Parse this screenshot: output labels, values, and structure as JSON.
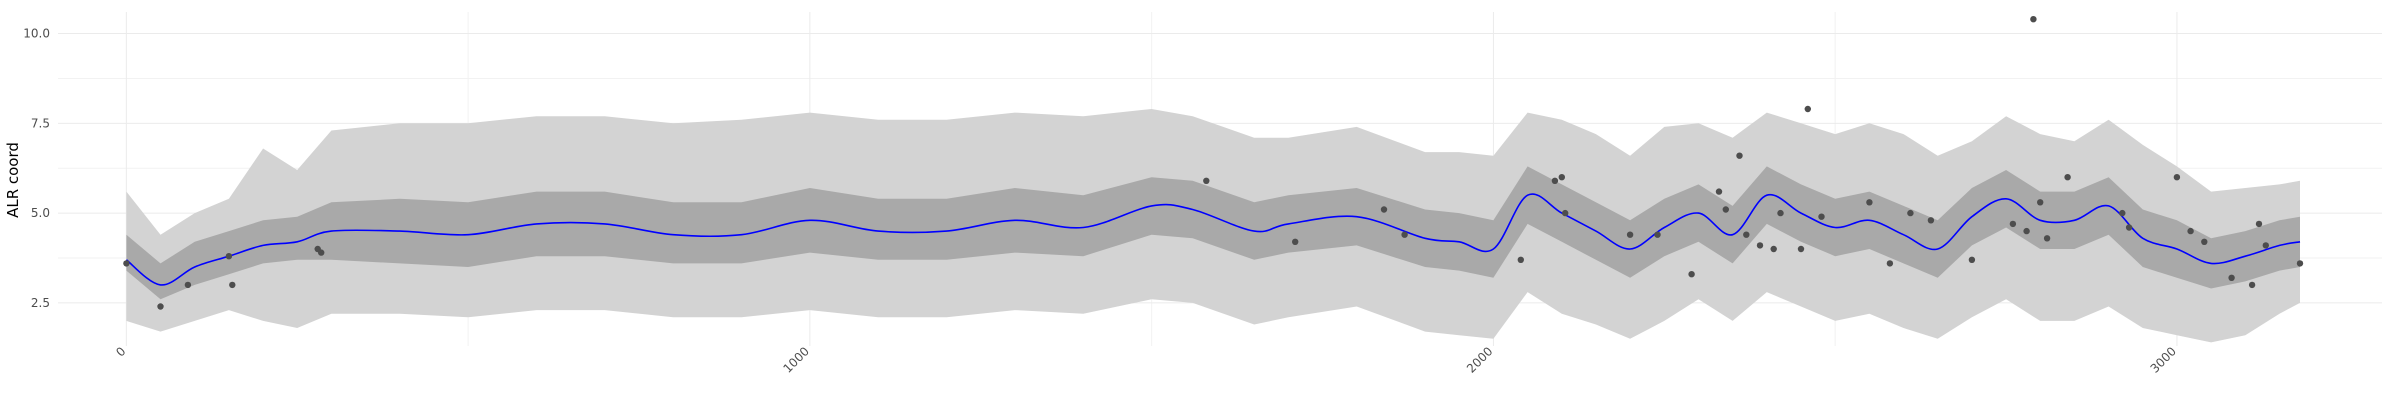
{
  "chart_data": {
    "type": "line",
    "title": "",
    "xlabel": "",
    "ylabel": "ALR coord",
    "xlim": [
      -100,
      3300
    ],
    "ylim": [
      1.3,
      10.6
    ],
    "x_ticks": [
      0,
      1000,
      2000,
      3000
    ],
    "y_ticks": [
      2.5,
      5.0,
      7.5,
      10.0
    ],
    "x_tick_labels": [
      "0",
      "1000",
      "2000",
      "3000"
    ],
    "y_tick_labels": [
      "2.5",
      "5.0",
      "7.5",
      "10.0"
    ],
    "grid": true,
    "legend": "none",
    "colors": {
      "line": "#0000ff",
      "inner_band": "#a9a9a9",
      "outer_band": "#d3d3d3",
      "points": "#4d4d4d",
      "grid": "#ebebeb"
    },
    "series": [
      {
        "type": "line",
        "x": [
          0,
          50,
          100,
          150,
          200,
          250,
          300,
          400,
          500,
          600,
          700,
          800,
          900,
          1000,
          1100,
          1200,
          1300,
          1400,
          1500,
          1560,
          1650,
          1700,
          1800,
          1900,
          1950,
          2000,
          2050,
          2100,
          2150,
          2200,
          2250,
          2300,
          2350,
          2400,
          2450,
          2500,
          2550,
          2600,
          2650,
          2700,
          2750,
          2800,
          2850,
          2900,
          2950,
          3000,
          3050,
          3100,
          3150,
          3180
        ],
        "y": [
          3.7,
          3.0,
          3.5,
          3.8,
          4.1,
          4.2,
          4.5,
          4.5,
          4.4,
          4.7,
          4.7,
          4.4,
          4.4,
          4.8,
          4.5,
          4.5,
          4.8,
          4.6,
          5.2,
          5.1,
          4.5,
          4.7,
          4.9,
          4.3,
          4.2,
          4.0,
          5.5,
          5.0,
          4.5,
          4.0,
          4.6,
          5.0,
          4.4,
          5.5,
          5.0,
          4.6,
          4.8,
          4.4,
          4.0,
          4.9,
          5.4,
          4.8,
          4.8,
          5.2,
          4.3,
          4.0,
          3.6,
          3.8,
          4.1,
          4.2
        ]
      },
      {
        "type": "band",
        "x": [
          0,
          50,
          100,
          150,
          200,
          250,
          300,
          400,
          500,
          600,
          700,
          800,
          900,
          1000,
          1100,
          1200,
          1300,
          1400,
          1500,
          1560,
          1650,
          1700,
          1800,
          1900,
          1950,
          2000,
          2050,
          2100,
          2150,
          2200,
          2250,
          2300,
          2350,
          2400,
          2450,
          2500,
          2550,
          2600,
          2650,
          2700,
          2750,
          2800,
          2850,
          2900,
          2950,
          3000,
          3050,
          3100,
          3150,
          3180
        ],
        "lower": [
          3.4,
          2.6,
          3.0,
          3.3,
          3.6,
          3.7,
          3.7,
          3.6,
          3.5,
          3.8,
          3.8,
          3.6,
          3.6,
          3.9,
          3.7,
          3.7,
          3.9,
          3.8,
          4.4,
          4.3,
          3.7,
          3.9,
          4.1,
          3.5,
          3.4,
          3.2,
          4.7,
          4.2,
          3.7,
          3.2,
          3.8,
          4.2,
          3.6,
          4.7,
          4.2,
          3.8,
          4.0,
          3.6,
          3.2,
          4.1,
          4.6,
          4.0,
          4.0,
          4.4,
          3.5,
          3.2,
          2.9,
          3.1,
          3.4,
          3.5
        ],
        "upper": [
          4.4,
          3.6,
          4.2,
          4.5,
          4.8,
          4.9,
          5.3,
          5.4,
          5.3,
          5.6,
          5.6,
          5.3,
          5.3,
          5.7,
          5.4,
          5.4,
          5.7,
          5.5,
          6.0,
          5.9,
          5.3,
          5.5,
          5.7,
          5.1,
          5.0,
          4.8,
          6.3,
          5.8,
          5.3,
          4.8,
          5.4,
          5.8,
          5.2,
          6.3,
          5.8,
          5.4,
          5.6,
          5.2,
          4.8,
          5.7,
          6.2,
          5.6,
          5.6,
          6.0,
          5.1,
          4.8,
          4.3,
          4.5,
          4.8,
          4.9
        ]
      },
      {
        "type": "band",
        "x": [
          0,
          50,
          100,
          150,
          200,
          250,
          300,
          400,
          500,
          600,
          700,
          800,
          900,
          1000,
          1100,
          1200,
          1300,
          1400,
          1500,
          1560,
          1650,
          1700,
          1800,
          1900,
          1950,
          2000,
          2050,
          2100,
          2150,
          2200,
          2250,
          2300,
          2350,
          2400,
          2450,
          2500,
          2550,
          2600,
          2650,
          2700,
          2750,
          2800,
          2850,
          2900,
          2950,
          3000,
          3050,
          3100,
          3150,
          3180
        ],
        "lower": [
          2.0,
          1.7,
          2.0,
          2.3,
          2.0,
          1.8,
          2.2,
          2.2,
          2.1,
          2.3,
          2.3,
          2.1,
          2.1,
          2.3,
          2.1,
          2.1,
          2.3,
          2.2,
          2.6,
          2.5,
          1.9,
          2.1,
          2.4,
          1.7,
          1.6,
          1.5,
          2.8,
          2.2,
          1.9,
          1.5,
          2.0,
          2.6,
          2.0,
          2.8,
          2.4,
          2.0,
          2.2,
          1.8,
          1.5,
          2.1,
          2.6,
          2.0,
          2.0,
          2.4,
          1.8,
          1.6,
          1.4,
          1.6,
          2.2,
          2.5
        ],
        "upper": [
          5.6,
          4.4,
          5.0,
          5.4,
          6.8,
          6.2,
          7.3,
          7.5,
          7.5,
          7.7,
          7.7,
          7.5,
          7.6,
          7.8,
          7.6,
          7.6,
          7.8,
          7.7,
          7.9,
          7.7,
          7.1,
          7.1,
          7.4,
          6.7,
          6.7,
          6.6,
          7.8,
          7.6,
          7.2,
          6.6,
          7.4,
          7.5,
          7.1,
          7.8,
          7.5,
          7.2,
          7.5,
          7.2,
          6.6,
          7.0,
          7.7,
          7.2,
          7.0,
          7.6,
          6.9,
          6.3,
          5.6,
          5.7,
          5.8,
          5.9
        ]
      },
      {
        "type": "scatter",
        "points": [
          [
            0,
            3.6
          ],
          [
            50,
            2.4
          ],
          [
            90,
            3.0
          ],
          [
            150,
            3.8
          ],
          [
            155,
            3.0
          ],
          [
            280,
            4.0
          ],
          [
            285,
            3.9
          ],
          [
            1580,
            5.9
          ],
          [
            1710,
            4.2
          ],
          [
            1840,
            5.1
          ],
          [
            1870,
            4.4
          ],
          [
            2040,
            3.7
          ],
          [
            2090,
            5.9
          ],
          [
            2100,
            6.0
          ],
          [
            2105,
            5.0
          ],
          [
            2200,
            4.4
          ],
          [
            2240,
            4.4
          ],
          [
            2290,
            3.3
          ],
          [
            2330,
            5.6
          ],
          [
            2340,
            5.1
          ],
          [
            2360,
            6.6
          ],
          [
            2370,
            4.4
          ],
          [
            2390,
            4.1
          ],
          [
            2410,
            4.0
          ],
          [
            2420,
            5.0
          ],
          [
            2450,
            4.0
          ],
          [
            2460,
            7.9
          ],
          [
            2480,
            4.9
          ],
          [
            2550,
            5.3
          ],
          [
            2580,
            3.6
          ],
          [
            2610,
            5.0
          ],
          [
            2640,
            4.8
          ],
          [
            2700,
            3.7
          ],
          [
            2760,
            4.7
          ],
          [
            2780,
            4.5
          ],
          [
            2790,
            10.4
          ],
          [
            2800,
            5.3
          ],
          [
            2810,
            4.3
          ],
          [
            2840,
            6.0
          ],
          [
            2920,
            5.0
          ],
          [
            2930,
            4.6
          ],
          [
            3000,
            6.0
          ],
          [
            3020,
            4.5
          ],
          [
            3040,
            4.2
          ],
          [
            3080,
            3.2
          ],
          [
            3110,
            3.0
          ],
          [
            3120,
            4.7
          ],
          [
            3130,
            4.1
          ],
          [
            3180,
            3.6
          ]
        ]
      }
    ]
  }
}
